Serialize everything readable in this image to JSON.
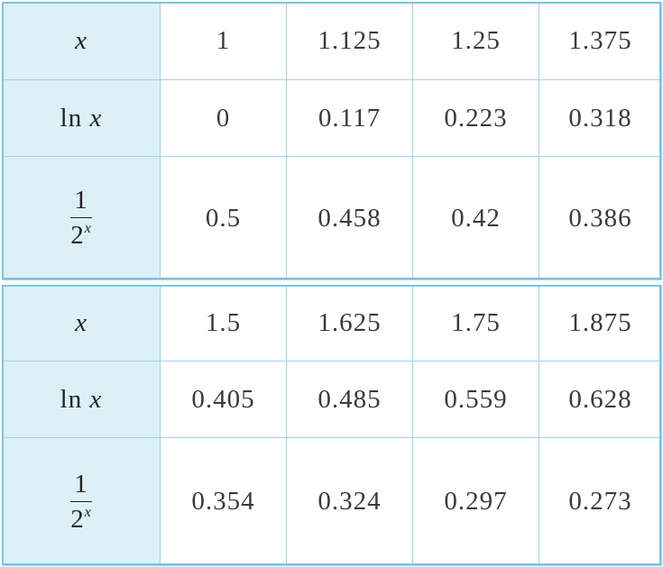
{
  "tables": [
    {
      "rows": [
        {
          "label": {
            "var": "x"
          },
          "cells": [
            "1",
            "1.125",
            "1.25",
            "1.375"
          ]
        },
        {
          "label": {
            "fn": "ln",
            "var": "x"
          },
          "cells": [
            "0",
            "0.117",
            "0.223",
            "0.318"
          ]
        },
        {
          "label": {
            "numerator": "1",
            "base": "2",
            "exponent": "x"
          },
          "cells": [
            "0.5",
            "0.458",
            "0.42",
            "0.386"
          ]
        }
      ]
    },
    {
      "rows": [
        {
          "label": {
            "var": "x"
          },
          "cells": [
            "1.5",
            "1.625",
            "1.75",
            "1.875"
          ]
        },
        {
          "label": {
            "fn": "ln",
            "var": "x"
          },
          "cells": [
            "0.405",
            "0.485",
            "0.559",
            "0.628"
          ]
        },
        {
          "label": {
            "numerator": "1",
            "base": "2",
            "exponent": "x"
          },
          "cells": [
            "0.354",
            "0.324",
            "0.297",
            "0.273"
          ]
        }
      ]
    }
  ]
}
